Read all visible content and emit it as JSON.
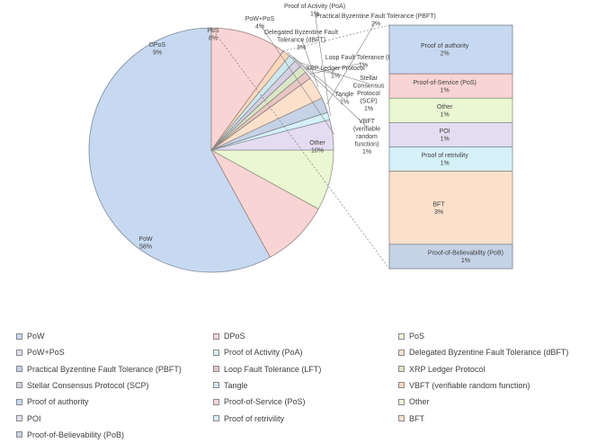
{
  "chart_data": {
    "type": "pie",
    "subtype": "bar-of-pie",
    "title": "",
    "pie": [
      {
        "label": "PoW",
        "pct": "58%",
        "value": 58,
        "color": "#c6d9f1"
      },
      {
        "label": "DPoS",
        "pct": "9%",
        "value": 9,
        "color": "#f9d4d4"
      },
      {
        "label": "PoS",
        "pct": "8%",
        "value": 8,
        "color": "#ebf6d3"
      },
      {
        "label": "PoW+PoS",
        "pct": "4%",
        "value": 4,
        "color": "#e4dcf0"
      },
      {
        "label": "Proof of Activity (PoA)",
        "pct": "1%",
        "value": 1,
        "color": "#d5f0f7"
      },
      {
        "label": "Practical Byzentine Fault Tolerance (PBFT)",
        "pct": "2%",
        "value": 2,
        "color": "#c6d2e6"
      },
      {
        "label": "Delegated Byzentine Fault Tolerance (dBFT)",
        "pct": "3%",
        "value": 3,
        "color": "#fbe1cc"
      },
      {
        "label": "Loop Fault Tolerance (LFT)",
        "pct": "1%",
        "value": 1,
        "color": "#e8c6c4"
      },
      {
        "label": "XRP Ledger Protocol",
        "pct": "1%",
        "value": 1,
        "color": "#dbe6c6"
      },
      {
        "label": "Stellar Consensus Protocol (SCP)",
        "pct": "1%",
        "value": 1,
        "color": "#d6cfe2"
      },
      {
        "label": "Tangle",
        "pct": "1%",
        "value": 1,
        "color": "#cde8ef"
      },
      {
        "label": "VBFT (verifiable random function)",
        "pct": "1%",
        "value": 1,
        "color": "#fcd9bd"
      },
      {
        "label": "Other",
        "pct": "10%",
        "value": 10,
        "color": "#f9d4d4"
      }
    ],
    "bar": [
      {
        "label": "Proof of authority",
        "pct": "2%",
        "value": 2,
        "color": "#c6d9f1"
      },
      {
        "label": "Proof-of-Service (PoS)",
        "pct": "1%",
        "value": 1,
        "color": "#f9d4d4"
      },
      {
        "label": "Other",
        "pct": "1%",
        "value": 1,
        "color": "#ebf6d3"
      },
      {
        "label": "POI",
        "pct": "1%",
        "value": 1,
        "color": "#e4dcf0"
      },
      {
        "label": "Proof of retrivility",
        "pct": "1%",
        "value": 1,
        "color": "#d5f0f7"
      },
      {
        "label": "BFT",
        "pct": "3%",
        "value": 3,
        "color": "#fbe1cc"
      },
      {
        "label": "Proof-of-Believability (PoB)",
        "pct": "1%",
        "value": 1,
        "color": "#c6d2e6"
      }
    ],
    "legend": [
      {
        "label": "PoW",
        "color": "#c6d9f1"
      },
      {
        "label": "DPoS",
        "color": "#f9d4d4"
      },
      {
        "label": "PoS",
        "color": "#ebf6d3"
      },
      {
        "label": "PoW+PoS",
        "color": "#e4dcf0"
      },
      {
        "label": "Proof of Activity (PoA)",
        "color": "#d5f0f7"
      },
      {
        "label": "Delegated Byzentine Fault Tolerance (dBFT)",
        "color": "#fbe1cc"
      },
      {
        "label": "Practical Byzentine Fault Tolerance (PBFT)",
        "color": "#c6d2e6"
      },
      {
        "label": "Loop Fault Tolerance (LFT)",
        "color": "#e8c6c4"
      },
      {
        "label": "XRP Ledger Protocol",
        "color": "#dbe6c6"
      },
      {
        "label": "Stellar Consensus Protocol (SCP)",
        "color": "#d6cfe2"
      },
      {
        "label": "Tangle",
        "color": "#cde8ef"
      },
      {
        "label": "VBFT (verifiable random function)",
        "color": "#fcd9bd"
      },
      {
        "label": "Proof of authority",
        "color": "#c6d9f1"
      },
      {
        "label": "Proof-of-Service (PoS)",
        "color": "#f9d4d4"
      },
      {
        "label": "Other",
        "color": "#ebf6d3"
      },
      {
        "label": "POI",
        "color": "#e4dcf0"
      },
      {
        "label": "Proof of retrivility",
        "color": "#d5f0f7"
      },
      {
        "label": "BFT",
        "color": "#fbe1cc"
      },
      {
        "label": "Proof-of-Believability (PoB)",
        "color": "#c6d2e6"
      }
    ]
  }
}
